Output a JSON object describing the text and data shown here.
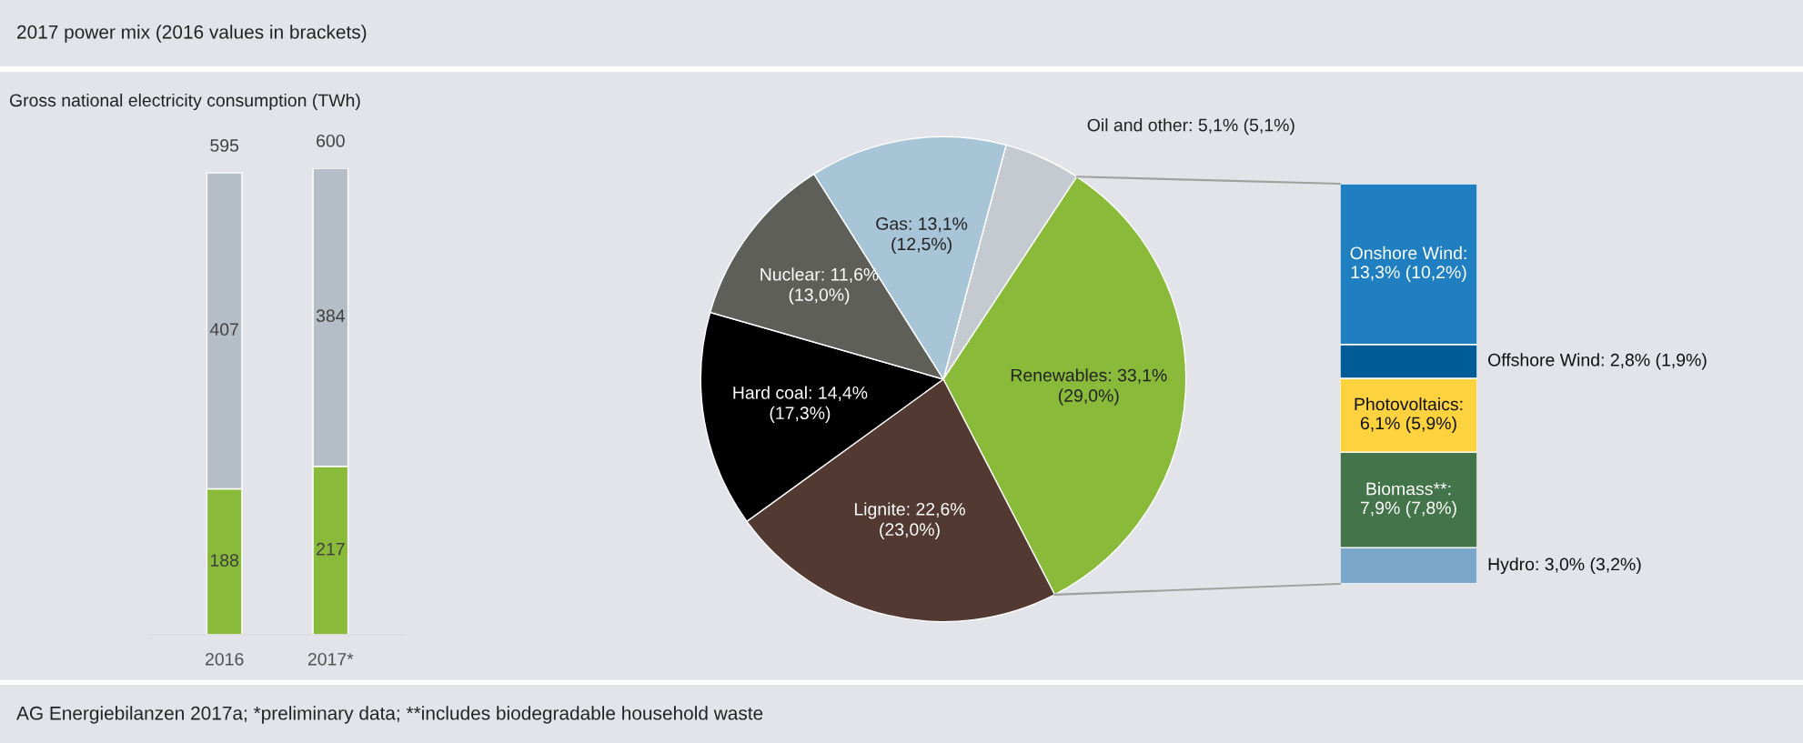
{
  "chart_data": [
    {
      "type": "other",
      "title": "2017 power mix (2016 values in brackets)",
      "annotations": [
        "AG Energiebilanzen 2017a; *preliminary data; **includes biodegradable household waste"
      ]
    },
    {
      "type": "bar",
      "title": "Gross national electricity consumption (TWh)",
      "categories": [
        "2016",
        "2017*"
      ],
      "stacked": true,
      "data_labels": true,
      "totals": [
        "595",
        "600"
      ],
      "tick_labels": "x",
      "series": [
        {
          "color": "#8aba3a",
          "values": [
            188,
            217
          ]
        },
        {
          "color": "#b5bec6",
          "values": [
            407,
            384
          ]
        }
      ]
    },
    {
      "type": "pie",
      "categories": [
        "Oil and other",
        "Renewables",
        "Lignite",
        "Hard coal",
        "Nuclear",
        "Gas"
      ],
      "values": [
        5.1,
        33.1,
        22.6,
        14.4,
        11.6,
        13.1
      ],
      "colors": [
        "#c5cad0",
        "#8aba3a",
        "#523a32",
        "#000000",
        "#5f5f5a",
        "#a7c5d6"
      ],
      "value_labels": [
        "5,1% (5,1%)",
        "33,1%\n(29,0%)",
        "22,6%\n(23,0%)",
        "14,4%\n(17,3%)",
        "11,6%\n(13,0%)",
        "13,1%\n(12,5%)"
      ]
    },
    {
      "type": "bar",
      "stacked": true,
      "categories": [
        null
      ],
      "tick_labels": false,
      "series": [
        {
          "name": "Hydro:",
          "color": "#7ba7cb",
          "values": [
            3.0
          ],
          "value_labels": [
            "3,0% (3,2%)"
          ]
        },
        {
          "name": "Biomass**:",
          "color": "#44744a",
          "values": [
            7.9
          ],
          "value_labels": [
            "7,9% (7,8%)"
          ]
        },
        {
          "name": "Photovoltaics:",
          "color": "#fdd23f",
          "values": [
            6.1
          ],
          "value_labels": [
            "6,1% (5,9%)"
          ]
        },
        {
          "name": "Offshore Wind:",
          "color": "#005c97",
          "values": [
            2.8
          ],
          "value_labels": [
            "2,8% (1,9%)"
          ]
        },
        {
          "name": "Onshore Wind:",
          "color": "#1f7fc0",
          "values": [
            13.3
          ],
          "value_labels": [
            "13,3% (10,2%)"
          ]
        }
      ]
    }
  ]
}
